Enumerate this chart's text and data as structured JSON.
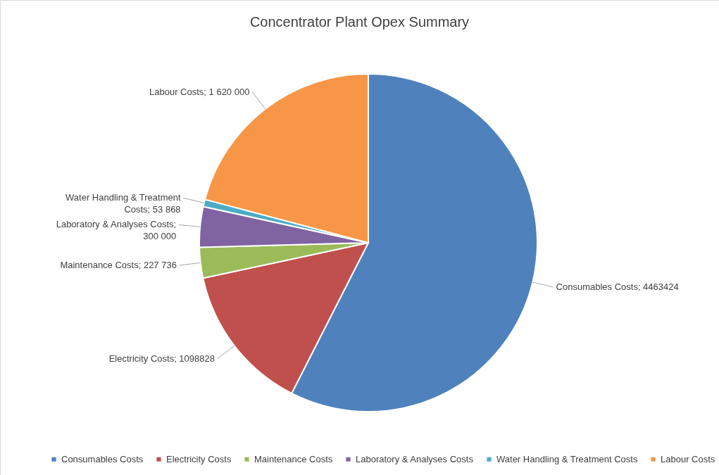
{
  "chart_data": {
    "type": "pie",
    "title": "Concentrator Plant Opex Summary",
    "categories": [
      "Consumables Costs",
      "Electricity Costs",
      "Maintenance Costs",
      "Laboratory & Analyses Costs",
      "Water Handling & Treatment Costs",
      "Labour Costs"
    ],
    "values": [
      4463424,
      1098828,
      227736,
      300000,
      53868,
      1620000
    ],
    "value_labels": [
      "Consumables Costs; 4463424",
      "Electricity Costs; 1098828",
      "Maintenance Costs; 227 736",
      "Laboratory & Analyses Costs; 300 000",
      "Water Handling & Treatment Costs; 53 868",
      "Labour Costs; 1 620 000"
    ],
    "colors": [
      "#4f81bd",
      "#c0504d",
      "#9bbb59",
      "#8064a2",
      "#4bacc6",
      "#f79646"
    ],
    "legend": "bottom"
  }
}
